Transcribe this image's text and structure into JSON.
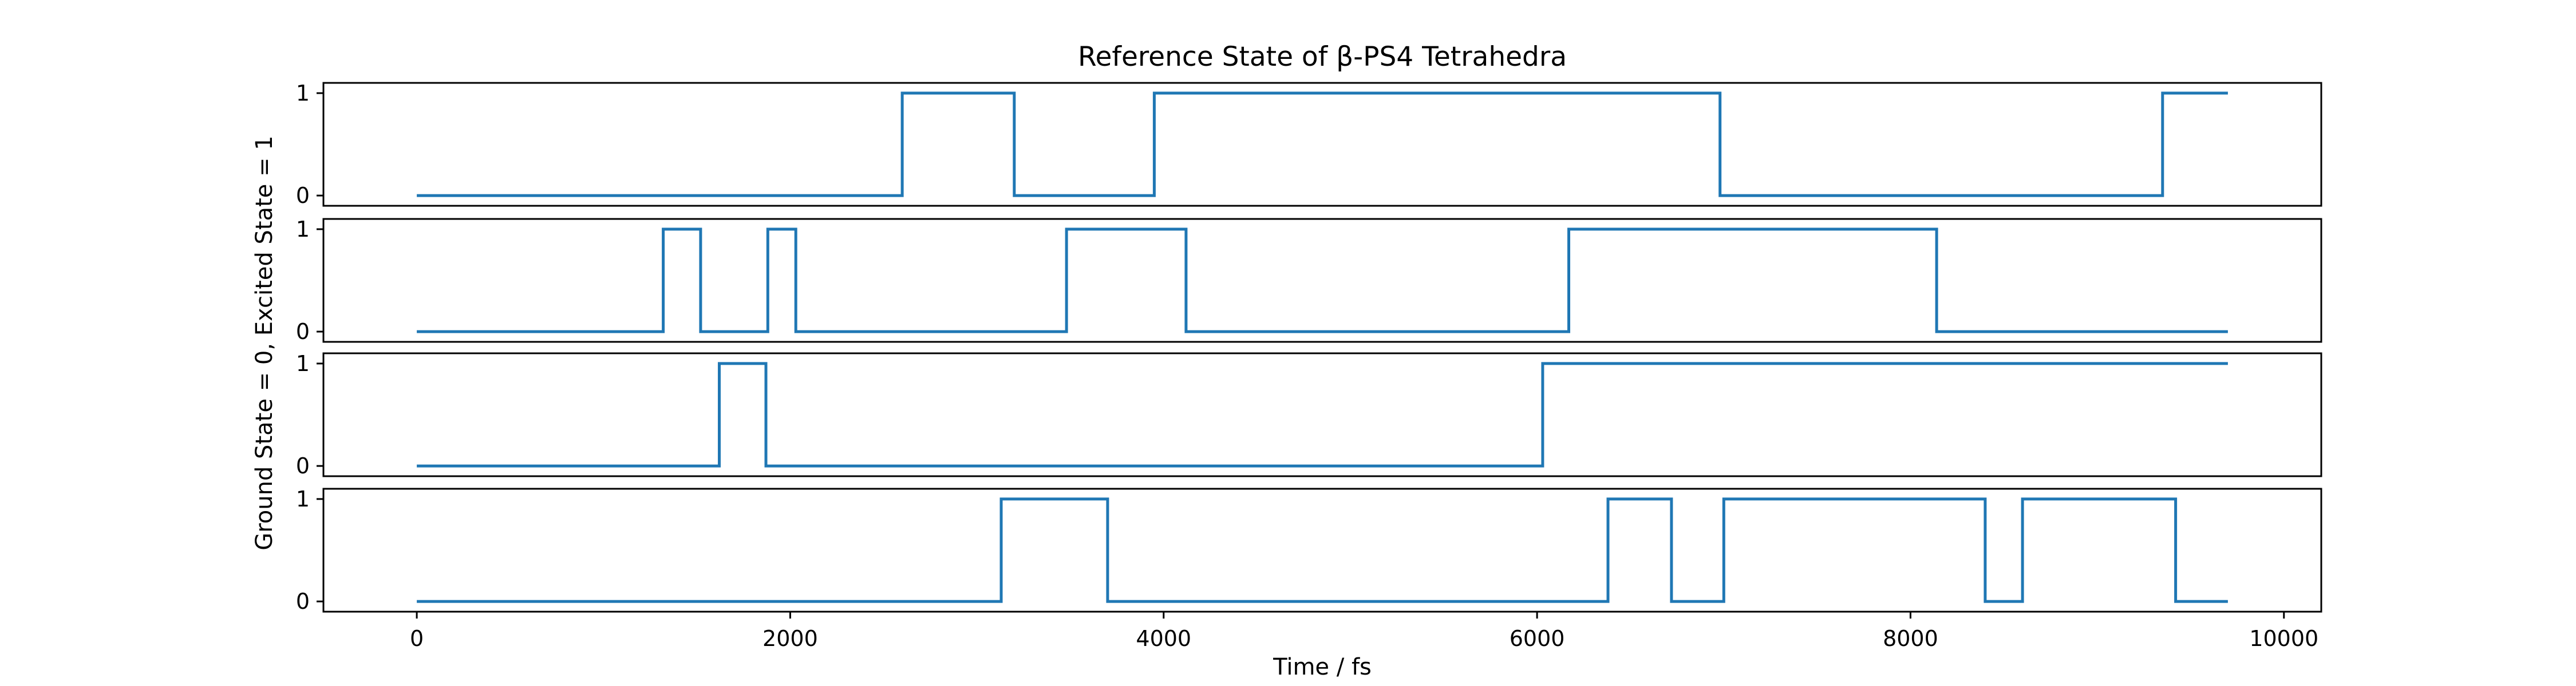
{
  "chart_data": {
    "type": "line",
    "step": "post",
    "title": "Reference State of β-PS4 Tetrahedra",
    "xlabel": "Time / fs",
    "ylabel": "Ground State = 0, Excited State = 1",
    "xlim": [
      -500,
      10200
    ],
    "ylim": [
      -0.1,
      1.1
    ],
    "xticks": [
      0,
      2000,
      4000,
      6000,
      8000,
      10000
    ],
    "yticks": [
      0,
      1
    ],
    "grid": false,
    "legend": "none",
    "line_color": "#1f77b4",
    "panels": [
      {
        "x": [
          0,
          2600,
          3200,
          3950,
          6980,
          9350,
          9700
        ],
        "y": [
          0,
          1,
          0,
          1,
          0,
          1,
          1
        ]
      },
      {
        "x": [
          0,
          1320,
          1520,
          1880,
          2030,
          3480,
          4120,
          6170,
          8140,
          9700
        ],
        "y": [
          0,
          1,
          0,
          1,
          0,
          1,
          0,
          1,
          0,
          0
        ]
      },
      {
        "x": [
          0,
          1620,
          1870,
          6030,
          9700
        ],
        "y": [
          0,
          1,
          0,
          1,
          1
        ]
      },
      {
        "x": [
          0,
          3130,
          3700,
          6380,
          6720,
          7000,
          8400,
          8600,
          9420,
          9700
        ],
        "y": [
          0,
          1,
          0,
          1,
          0,
          1,
          0,
          1,
          0,
          0
        ]
      }
    ]
  }
}
